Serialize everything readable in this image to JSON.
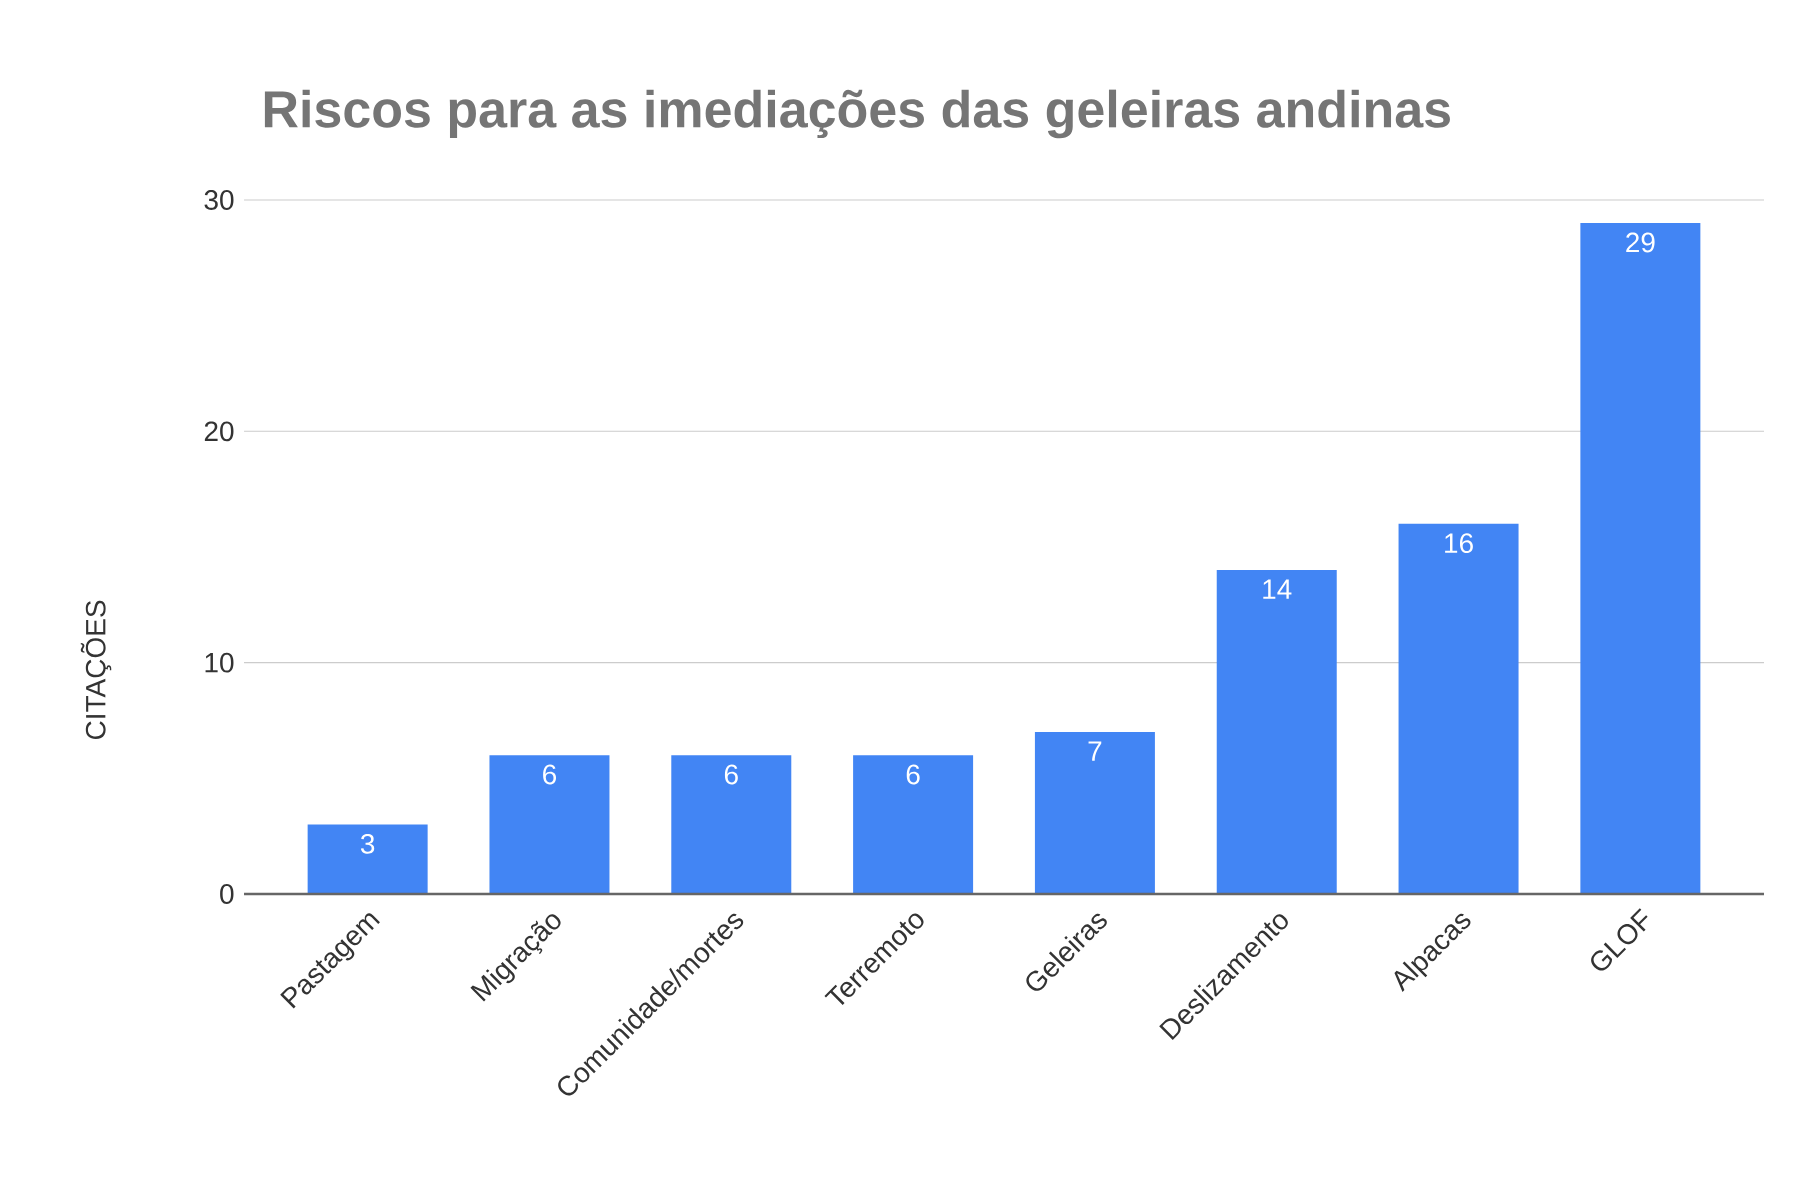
{
  "chart_data": {
    "type": "bar",
    "title": "Riscos para as imediações das geleiras andinas",
    "ylabel": "CITAÇÕES",
    "categories": [
      "Pastagem",
      "Migração",
      "Comunidade/mortes",
      "Terremoto",
      "Geleiras",
      "Deslizamento",
      "Alpacas",
      "GLOF"
    ],
    "values": [
      3,
      6,
      6,
      6,
      7,
      14,
      16,
      29
    ],
    "color": "#4285f4",
    "ylim": [
      0,
      30
    ],
    "yticks": [
      0,
      10,
      20,
      30
    ],
    "grid": "y",
    "data_labels": true
  }
}
